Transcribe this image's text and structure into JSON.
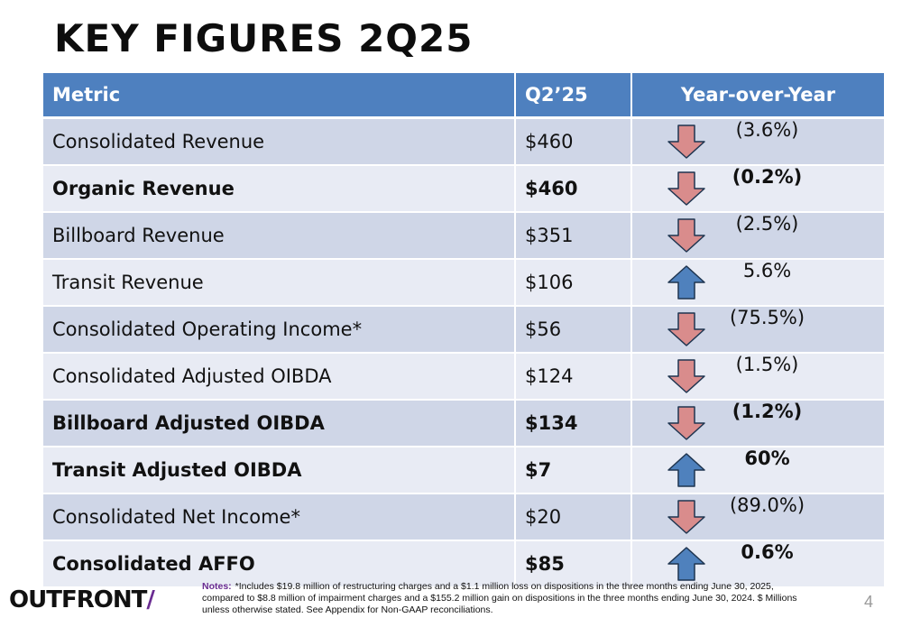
{
  "title": "KEY FIGURES 2Q25",
  "table": {
    "headers": [
      "Metric",
      "Q2’25",
      "Year-over-Year"
    ],
    "rows": [
      {
        "metric": "Consolidated Revenue",
        "q2": "$460",
        "yoy": "(3.6%)",
        "direction": "down",
        "bold": false
      },
      {
        "metric": "Organic Revenue",
        "q2": "$460",
        "yoy": "(0.2%)",
        "direction": "down",
        "bold": true
      },
      {
        "metric": "Billboard Revenue",
        "q2": "$351",
        "yoy": "(2.5%)",
        "direction": "down",
        "bold": false
      },
      {
        "metric": "Transit Revenue",
        "q2": "$106",
        "yoy": "5.6%",
        "direction": "up",
        "bold": false
      },
      {
        "metric": "Consolidated Operating Income*",
        "q2": "$56",
        "yoy": "(75.5%)",
        "direction": "down",
        "bold": false
      },
      {
        "metric": "Consolidated Adjusted OIBDA",
        "q2": "$124",
        "yoy": "(1.5%)",
        "direction": "down",
        "bold": false
      },
      {
        "metric": "Billboard Adjusted OIBDA",
        "q2": "$134",
        "yoy": "(1.2%)",
        "direction": "down",
        "bold": true
      },
      {
        "metric": "Transit Adjusted OIBDA",
        "q2": "$7",
        "yoy": "60%",
        "direction": "up",
        "bold": true
      },
      {
        "metric": "Consolidated Net Income*",
        "q2": "$20",
        "yoy": "(89.0%)",
        "direction": "down",
        "bold": false
      },
      {
        "metric": "Consolidated AFFO",
        "q2": "$85",
        "yoy": "0.6%",
        "direction": "up",
        "bold": true
      }
    ]
  },
  "arrow_colors": {
    "down_fill": "#d98c8c",
    "up_fill": "#4f81bd",
    "stroke": "#1f3550"
  },
  "notes_label": "Notes:",
  "notes_text": "*Includes $19.8 million of restructuring charges and a $1.1 million loss on dispositions in the three months ending June 30, 2025, compared to $8.8 million of impairment charges and a $155.2 million gain on dispositions in the three months ending June 30, 2024. $ Millions unless otherwise stated. See Appendix for Non-GAAP reconciliations.",
  "logo_text": "OUTFRONT",
  "logo_slash": "/",
  "page_number": "4"
}
